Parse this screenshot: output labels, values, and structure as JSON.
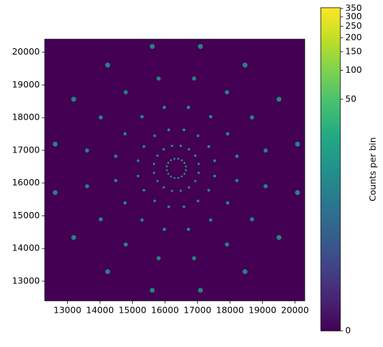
{
  "chart_data": {
    "type": "hist2d",
    "colormap": "viridis",
    "xlim": [
      12300,
      20300
    ],
    "ylim": [
      12400,
      20400
    ],
    "xticks": [
      13000,
      14000,
      15000,
      16000,
      17000,
      18000,
      19000,
      20000
    ],
    "yticks": [
      13000,
      14000,
      15000,
      16000,
      17000,
      18000,
      19000,
      20000
    ],
    "colorbar": {
      "label": "Counts per bin",
      "lim": [
        0,
        355
      ],
      "scale": "power",
      "gamma": 0.17,
      "ticks": [
        0,
        50,
        100,
        150,
        200,
        250,
        300,
        350
      ]
    },
    "x": [
      16644,
      17037,
      17527,
      18214,
      19097,
      20078,
      16599,
      16932,
      17347,
      17929,
      18677,
      19508,
      16517,
      16739,
      17017,
      17406,
      17907,
      18463,
      16409,
      16487,
      16584,
      16721,
      16896,
      17091,
      16291,
      16213,
      16116,
      15979,
      15804,
      15609,
      16183,
      15961,
      15683,
      15294,
      14793,
      14237,
      16101,
      15768,
      15353,
      14771,
      14023,
      13192,
      16056,
      15663,
      15173,
      14486,
      13603,
      12622,
      16056,
      15663,
      15173,
      14486,
      13603,
      12622,
      16101,
      15768,
      15353,
      14771,
      14023,
      13192,
      16183,
      15961,
      15683,
      15294,
      14793,
      14237,
      16291,
      16213,
      16116,
      15979,
      15804,
      15609,
      16409,
      16487,
      16584,
      16721,
      16896,
      17091,
      16517,
      16739,
      17017,
      17406,
      17907,
      18463,
      16599,
      16932,
      17347,
      17929,
      18677,
      19508,
      16644,
      17037,
      17527,
      18214,
      19097,
      20078
    ],
    "y": [
      16509,
      16587,
      16684,
      16821,
      16996,
      17191,
      16617,
      16839,
      17117,
      17506,
      18007,
      18563,
      16699,
      17032,
      17447,
      18029,
      18777,
      19608,
      16744,
      17137,
      17627,
      18314,
      19197,
      20178,
      16744,
      17137,
      17627,
      18314,
      19197,
      20178,
      16699,
      17032,
      17447,
      18029,
      18777,
      19608,
      16617,
      16839,
      17117,
      17506,
      18007,
      18563,
      16509,
      16587,
      16684,
      16821,
      16996,
      17191,
      16391,
      16313,
      16216,
      16079,
      15904,
      15709,
      16283,
      16061,
      15783,
      15394,
      14893,
      14337,
      16201,
      15868,
      15453,
      14871,
      14123,
      13292,
      16156,
      15763,
      15273,
      14586,
      13703,
      12722,
      16156,
      15763,
      15273,
      14586,
      13703,
      12722,
      16201,
      15868,
      15453,
      14871,
      14123,
      13292,
      16283,
      16061,
      15783,
      15394,
      14893,
      14337,
      16391,
      16313,
      16216,
      16079,
      15904,
      15709
    ],
    "values": [
      12,
      10,
      9,
      8,
      7,
      6,
      12,
      10,
      9,
      8,
      7,
      6,
      12,
      10,
      9,
      8,
      7,
      6,
      12,
      10,
      9,
      8,
      7,
      6,
      12,
      10,
      9,
      8,
      7,
      6,
      12,
      10,
      9,
      8,
      7,
      6,
      12,
      10,
      9,
      8,
      7,
      6,
      12,
      10,
      9,
      8,
      7,
      6,
      12,
      10,
      9,
      8,
      7,
      6,
      12,
      10,
      9,
      8,
      7,
      6,
      12,
      10,
      9,
      8,
      7,
      6,
      12,
      10,
      9,
      8,
      7,
      6,
      12,
      10,
      9,
      8,
      7,
      6,
      12,
      10,
      9,
      8,
      7,
      6,
      12,
      10,
      9,
      8,
      7,
      6,
      12,
      10,
      9,
      8,
      7,
      6
    ]
  }
}
